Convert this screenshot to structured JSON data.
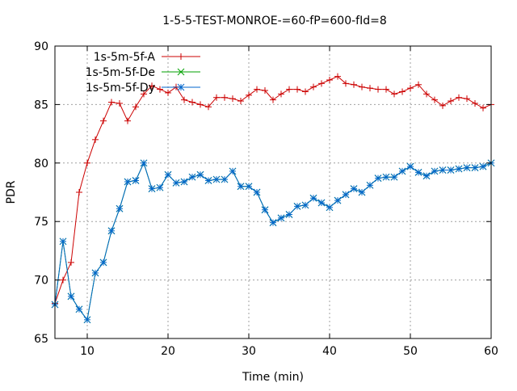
{
  "chart_data": {
    "type": "line",
    "title": "1-5-5-TEST-MONROE-=60-fP=600-fId=8",
    "xlabel": "Time (min)",
    "ylabel": "PDR",
    "xlim": [
      6,
      60
    ],
    "ylim": [
      65,
      90
    ],
    "xticks": [
      10,
      20,
      30,
      40,
      50,
      60
    ],
    "yticks": [
      65,
      70,
      75,
      80,
      85,
      90
    ],
    "grid": true,
    "legend_position": "top-left",
    "x": [
      6,
      7,
      8,
      9,
      10,
      11,
      12,
      13,
      14,
      15,
      16,
      17,
      18,
      19,
      20,
      21,
      22,
      23,
      24,
      25,
      26,
      27,
      28,
      29,
      30,
      31,
      32,
      33,
      34,
      35,
      36,
      37,
      38,
      39,
      40,
      41,
      42,
      43,
      44,
      45,
      46,
      47,
      48,
      49,
      50,
      51,
      52,
      53,
      54,
      55,
      56,
      57,
      58,
      59,
      60
    ],
    "series": [
      {
        "name": "1s-5m-5f-A",
        "color": "#cc0000",
        "marker": "plus",
        "values": [
          68.0,
          70.0,
          71.5,
          77.5,
          80.0,
          82.0,
          83.6,
          85.2,
          85.1,
          83.6,
          84.8,
          85.9,
          86.6,
          86.3,
          86.0,
          86.5,
          85.4,
          85.2,
          85.0,
          84.8,
          85.6,
          85.6,
          85.5,
          85.3,
          85.8,
          86.3,
          86.2,
          85.4,
          85.9,
          86.3,
          86.3,
          86.1,
          86.5,
          86.8,
          87.1,
          87.4,
          86.8,
          86.7,
          86.5,
          86.4,
          86.3,
          86.3,
          85.9,
          86.1,
          86.4,
          86.7,
          85.9,
          85.4,
          84.9,
          85.3,
          85.6,
          85.5,
          85.1,
          84.7,
          85.0
        ]
      },
      {
        "name": "1s-5m-5f-De",
        "color": "#00a000",
        "marker": "cross",
        "values": [
          67.9,
          73.3,
          68.6,
          67.5,
          66.6,
          70.6,
          71.5,
          74.2,
          76.1,
          78.4,
          78.5,
          80.0,
          77.8,
          77.9,
          79.0,
          78.3,
          78.4,
          78.8,
          79.0,
          78.5,
          78.6,
          78.6,
          79.3,
          78.0,
          78.0,
          77.5,
          76.0,
          74.9,
          75.3,
          75.6,
          76.3,
          76.4,
          77.0,
          76.6,
          76.2,
          76.8,
          77.3,
          77.8,
          77.5,
          78.1,
          78.7,
          78.8,
          78.8,
          79.3,
          79.7,
          79.2,
          78.9,
          79.3,
          79.4,
          79.4,
          79.5,
          79.6,
          79.6,
          79.7,
          80.0
        ]
      },
      {
        "name": "1s-5m-5f-Dy",
        "color": "#0066cc",
        "marker": "star",
        "values": [
          67.9,
          73.3,
          68.6,
          67.5,
          66.6,
          70.6,
          71.5,
          74.2,
          76.1,
          78.4,
          78.5,
          80.0,
          77.8,
          77.9,
          79.0,
          78.3,
          78.4,
          78.8,
          79.0,
          78.5,
          78.6,
          78.6,
          79.3,
          78.0,
          78.0,
          77.5,
          76.0,
          74.9,
          75.3,
          75.6,
          76.3,
          76.4,
          77.0,
          76.6,
          76.2,
          76.8,
          77.3,
          77.8,
          77.5,
          78.1,
          78.7,
          78.8,
          78.8,
          79.3,
          79.7,
          79.2,
          78.9,
          79.3,
          79.4,
          79.4,
          79.5,
          79.6,
          79.6,
          79.7,
          80.0
        ]
      }
    ]
  }
}
